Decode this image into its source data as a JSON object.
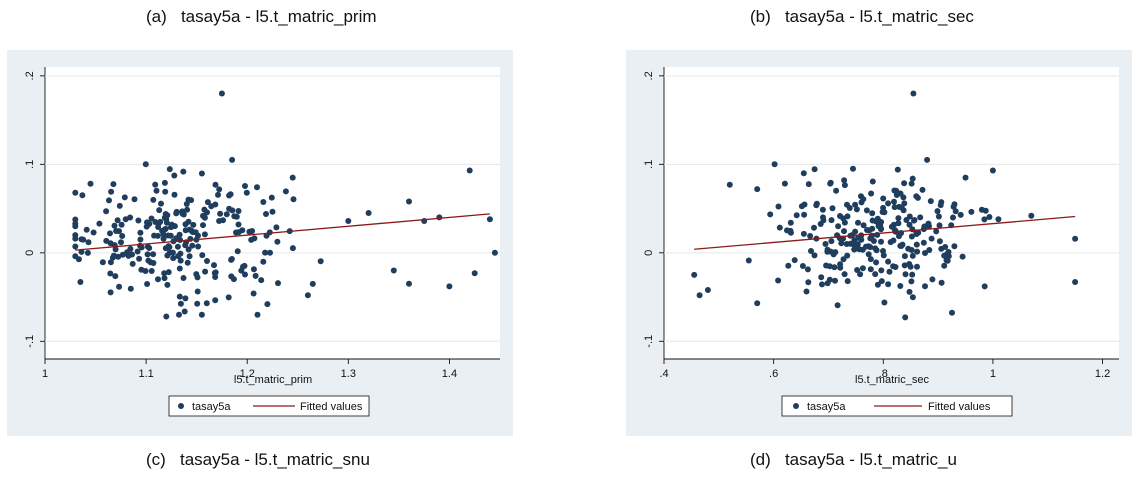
{
  "captions": {
    "a": "(a)   tasay5a - l5.t_matric_prim",
    "b": "(b)   tasay5a - l5.t_matric_sec",
    "c": "(c)   tasay5a - l5.t_matric_snu",
    "d": "(d)   tasay5a - l5.t_matric_u"
  },
  "colors": {
    "points": "#1f3d5c",
    "fit": "#8c1a1a",
    "panel_bg": "#e9eff2",
    "plot_bg": "#ffffff"
  },
  "chart_data": [
    {
      "type": "scatter",
      "xlabel": "l5.t_matric_prim",
      "ylabel": "",
      "xlim": [
        1.0,
        1.45
      ],
      "ylim": [
        -0.12,
        0.21
      ],
      "xticks": [
        1,
        1.1,
        1.2,
        1.3,
        1.4
      ],
      "xtick_labels": [
        "1",
        "1.1",
        "1.2",
        "1.3",
        "1.4"
      ],
      "yticks": [
        -0.1,
        0,
        0.1,
        0.2
      ],
      "ytick_labels": [
        "-.1",
        "0",
        ".1",
        ".2"
      ],
      "legend": [
        "tasay5a",
        "Fitted values"
      ],
      "legend_position": "bottom",
      "fit_line": {
        "x": [
          1.03,
          1.44
        ],
        "y": [
          0.003,
          0.044
        ]
      },
      "highlight_points": [
        {
          "x": 1.175,
          "y": 0.18
        },
        {
          "x": 1.42,
          "y": 0.093
        },
        {
          "x": 1.44,
          "y": 0.038
        },
        {
          "x": 1.445,
          "y": 0.0
        },
        {
          "x": 1.4,
          "y": -0.038
        },
        {
          "x": 1.425,
          "y": -0.023
        },
        {
          "x": 1.36,
          "y": -0.035
        },
        {
          "x": 1.345,
          "y": -0.02
        },
        {
          "x": 1.26,
          "y": -0.048
        },
        {
          "x": 1.22,
          "y": -0.058
        },
        {
          "x": 1.12,
          "y": -0.072
        },
        {
          "x": 1.16,
          "y": -0.057
        },
        {
          "x": 1.045,
          "y": 0.078
        },
        {
          "x": 1.035,
          "y": -0.033
        },
        {
          "x": 1.375,
          "y": 0.036
        },
        {
          "x": 1.39,
          "y": 0.04
        },
        {
          "x": 1.36,
          "y": 0.058
        },
        {
          "x": 1.32,
          "y": 0.045
        },
        {
          "x": 1.3,
          "y": 0.036
        },
        {
          "x": 1.245,
          "y": 0.085
        },
        {
          "x": 1.185,
          "y": 0.105
        }
      ],
      "cluster": {
        "n": 245,
        "x_center": 1.13,
        "x_spread": 0.055,
        "y_center": 0.018,
        "y_spread": 0.033
      }
    },
    {
      "type": "scatter",
      "xlabel": "l5.t_matric_sec",
      "ylabel": "",
      "xlim": [
        0.4,
        1.23
      ],
      "ylim": [
        -0.12,
        0.21
      ],
      "xticks": [
        0.4,
        0.6,
        0.8,
        1.0,
        1.2
      ],
      "xtick_labels": [
        ".4",
        ".6",
        ".8",
        "1",
        "1.2"
      ],
      "yticks": [
        -0.1,
        0,
        0.1,
        0.2
      ],
      "ytick_labels": [
        "-.1",
        "0",
        ".1",
        ".2"
      ],
      "legend": [
        "tasay5a",
        "Fitted values"
      ],
      "legend_position": "bottom",
      "fit_line": {
        "x": [
          0.455,
          1.15
        ],
        "y": [
          0.004,
          0.041
        ]
      },
      "highlight_points": [
        {
          "x": 0.855,
          "y": 0.18
        },
        {
          "x": 1.0,
          "y": 0.093
        },
        {
          "x": 1.15,
          "y": 0.016
        },
        {
          "x": 1.15,
          "y": -0.033
        },
        {
          "x": 1.07,
          "y": 0.042
        },
        {
          "x": 0.455,
          "y": -0.025
        },
        {
          "x": 0.465,
          "y": -0.048
        },
        {
          "x": 0.48,
          "y": -0.042
        },
        {
          "x": 0.52,
          "y": 0.077
        },
        {
          "x": 0.57,
          "y": -0.057
        },
        {
          "x": 0.57,
          "y": 0.072
        },
        {
          "x": 0.84,
          "y": -0.073
        },
        {
          "x": 0.985,
          "y": -0.038
        },
        {
          "x": 0.95,
          "y": 0.085
        },
        {
          "x": 0.93,
          "y": 0.055
        },
        {
          "x": 1.01,
          "y": 0.038
        },
        {
          "x": 0.88,
          "y": 0.105
        },
        {
          "x": 0.655,
          "y": 0.09
        }
      ],
      "cluster": {
        "n": 250,
        "x_center": 0.79,
        "x_spread": 0.085,
        "y_center": 0.018,
        "y_spread": 0.033
      }
    }
  ]
}
